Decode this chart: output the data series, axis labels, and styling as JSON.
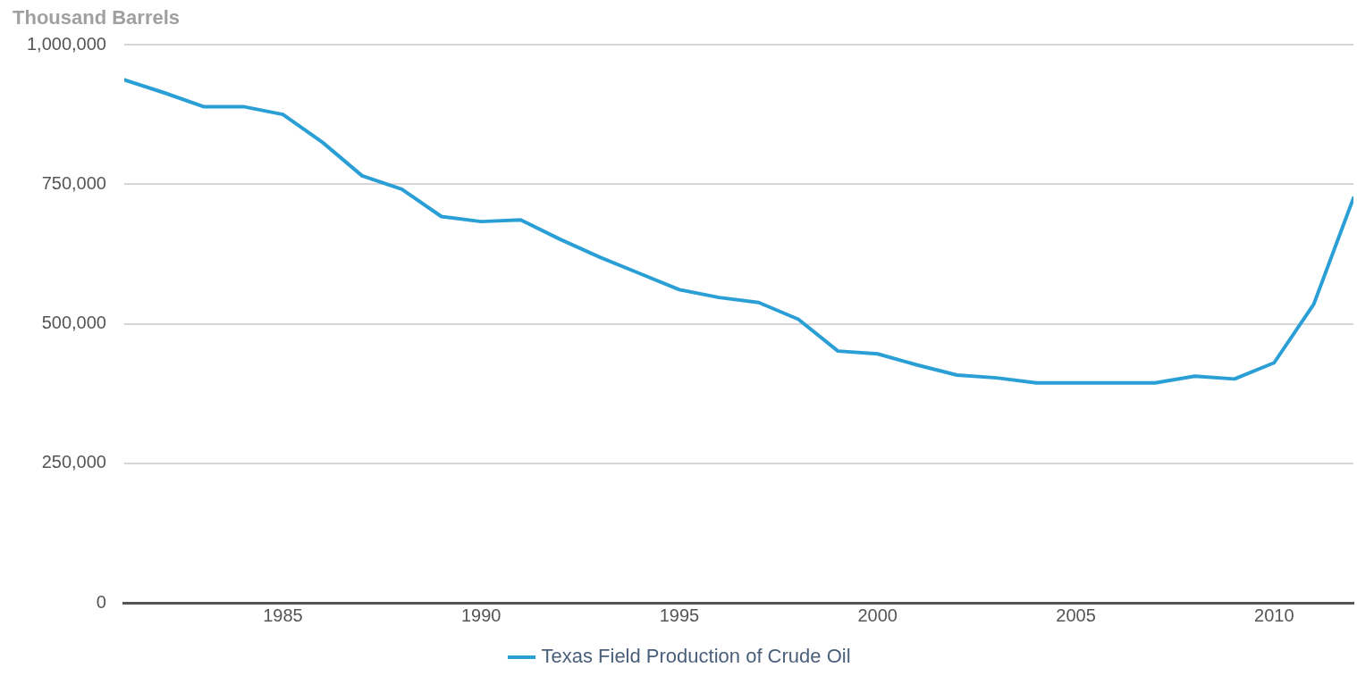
{
  "chart_data": {
    "type": "line",
    "ylabel": "Thousand Barrels",
    "x": [
      1981,
      1982,
      1983,
      1984,
      1985,
      1986,
      1987,
      1988,
      1989,
      1990,
      1991,
      1992,
      1993,
      1994,
      1995,
      1996,
      1997,
      1998,
      1999,
      2000,
      2001,
      2002,
      2003,
      2004,
      2005,
      2006,
      2007,
      2008,
      2009,
      2010,
      2011,
      2012
    ],
    "series": [
      {
        "name": "Texas Field Production of Crude Oil",
        "color": "#2a9fd6",
        "values": [
          937000,
          914000,
          889000,
          889000,
          875000,
          825000,
          765000,
          741000,
          692000,
          683000,
          686000,
          651000,
          619000,
          590000,
          561000,
          547000,
          538000,
          508000,
          451000,
          446000,
          426000,
          408000,
          403000,
          394000,
          394000,
          394000,
          394000,
          406000,
          401000,
          430000,
          535000,
          725000
        ]
      }
    ],
    "xlim": [
      1981,
      2012
    ],
    "xticks": [
      1985,
      1990,
      1995,
      2000,
      2005,
      2010
    ],
    "ylim": [
      0,
      1000000
    ],
    "yticks": [
      {
        "value": 0,
        "label": "0"
      },
      {
        "value": 250000,
        "label": "250,000"
      },
      {
        "value": 500000,
        "label": "500,000"
      },
      {
        "value": 750000,
        "label": "750,000"
      },
      {
        "value": 1000000,
        "label": "1,000,000"
      }
    ],
    "grid": "y",
    "legend": "bottom",
    "marker": "none",
    "line_style": "solid"
  }
}
